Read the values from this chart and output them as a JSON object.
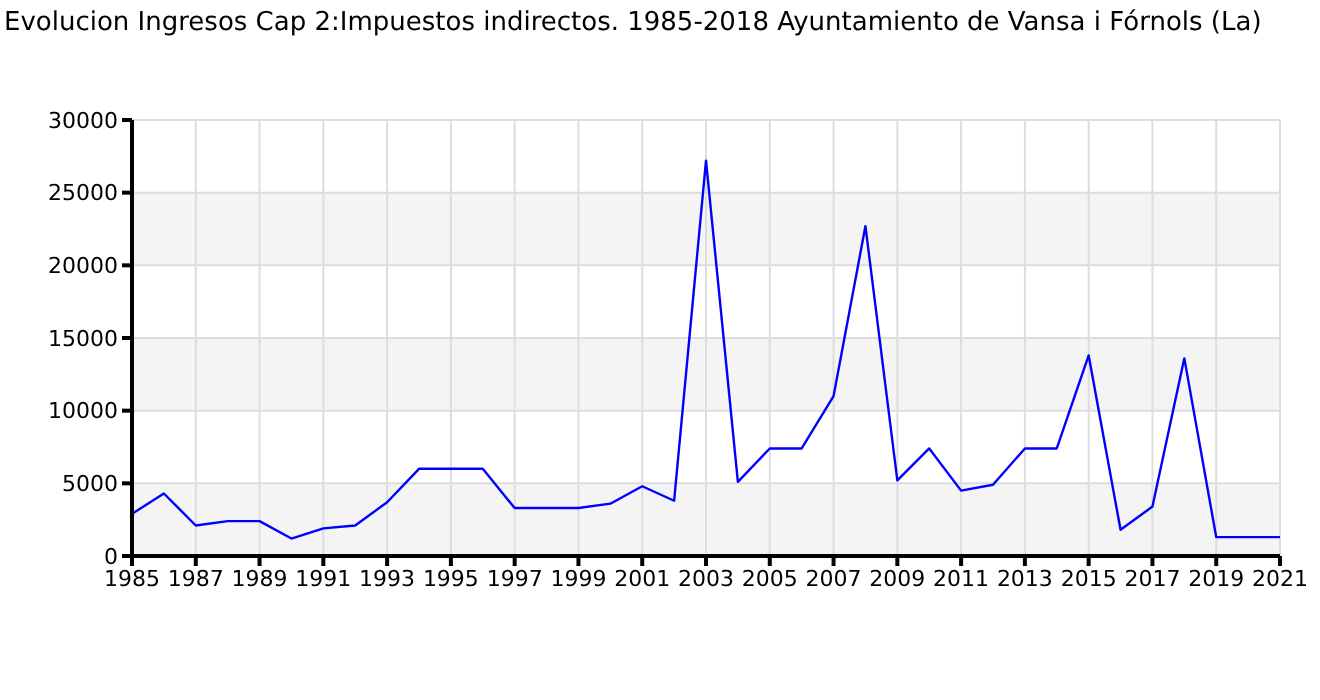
{
  "chart_data": {
    "type": "line",
    "title": "Evolucion Ingresos Cap 2:Impuestos indirectos. 1985-2018 Ayuntamiento de Vansa i Fórnols (La)",
    "x": [
      1985,
      1986,
      1987,
      1988,
      1989,
      1990,
      1991,
      1992,
      1993,
      1994,
      1995,
      1996,
      1997,
      1998,
      1999,
      2000,
      2001,
      2002,
      2003,
      2004,
      2005,
      2006,
      2007,
      2008,
      2009,
      2010,
      2011,
      2012,
      2013,
      2014,
      2015,
      2016,
      2017,
      2018,
      2019,
      2020,
      2021
    ],
    "series": [
      {
        "color": "#0000ff",
        "values": [
          2900,
          4300,
          2100,
          2400,
          2400,
          1200,
          1900,
          2100,
          3700,
          6000,
          6000,
          6000,
          3300,
          3300,
          3300,
          3600,
          4800,
          3800,
          27200,
          5100,
          7400,
          7400,
          11000,
          22700,
          5200,
          7400,
          4500,
          4900,
          7400,
          7400,
          13800,
          1800,
          3400,
          13600,
          1300,
          1300,
          1300
        ]
      }
    ],
    "xlim": [
      1985,
      2021
    ],
    "xticks": [
      1985,
      1987,
      1989,
      1991,
      1993,
      1995,
      1997,
      1999,
      2001,
      2003,
      2005,
      2007,
      2009,
      2011,
      2013,
      2015,
      2017,
      2019,
      2021
    ],
    "ylim": [
      0,
      30000
    ],
    "yticks": [
      0,
      5000,
      10000,
      15000,
      20000,
      25000,
      30000
    ],
    "grid": true,
    "marker": "none",
    "line_style": "solid"
  }
}
